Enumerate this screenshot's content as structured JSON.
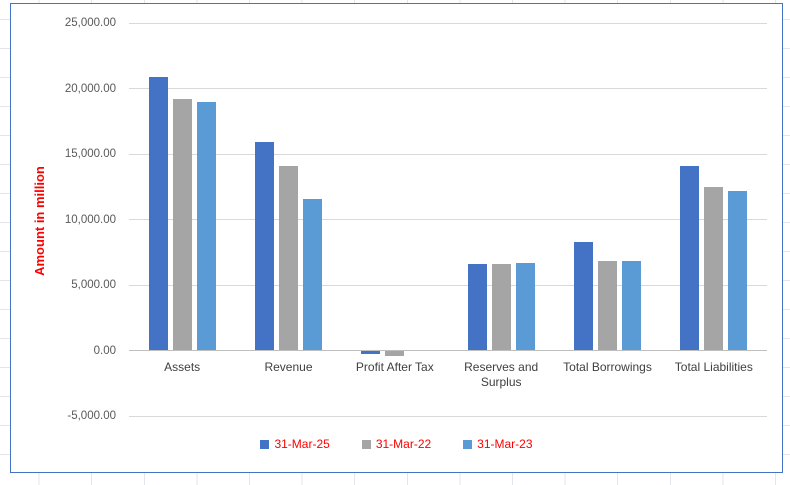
{
  "chart_data": {
    "type": "bar",
    "title": "",
    "ylabel": "Amount in million",
    "categories": [
      "Assets",
      "Revenue",
      "Profit After Tax",
      "Reserves and Surplus",
      "Total Borrowings",
      "Total Liabilities"
    ],
    "series": [
      {
        "name": "31-Mar-25",
        "color": "#4472C4",
        "values": [
          20850,
          15900,
          -250,
          6600,
          8300,
          14100
        ]
      },
      {
        "name": "31-Mar-22",
        "color": "#A5A5A5",
        "values": [
          19200,
          14050,
          -350,
          6600,
          6800,
          12450
        ]
      },
      {
        "name": "31-Mar-23",
        "color": "#5B9BD5",
        "values": [
          18950,
          11600,
          0,
          6700,
          6800,
          12200
        ]
      }
    ],
    "ylim": [
      -5000,
      25000
    ],
    "ytick_step": 5000,
    "ytick_labels": [
      "25,000.00",
      "20,000.00",
      "15,000.00",
      "10,000.00",
      "5,000.00",
      "0.00",
      "-5,000.00"
    ],
    "grid": true,
    "legend_position": "bottom",
    "colors": {
      "ylabel_text": "#FF0000",
      "legend_text": "#FF0000",
      "ytick_text": "#595959",
      "category_text": "#404040",
      "gridline": "#D9D9D9",
      "axis_line": "#BFBFBF",
      "chart_border": "#4472C4"
    }
  }
}
